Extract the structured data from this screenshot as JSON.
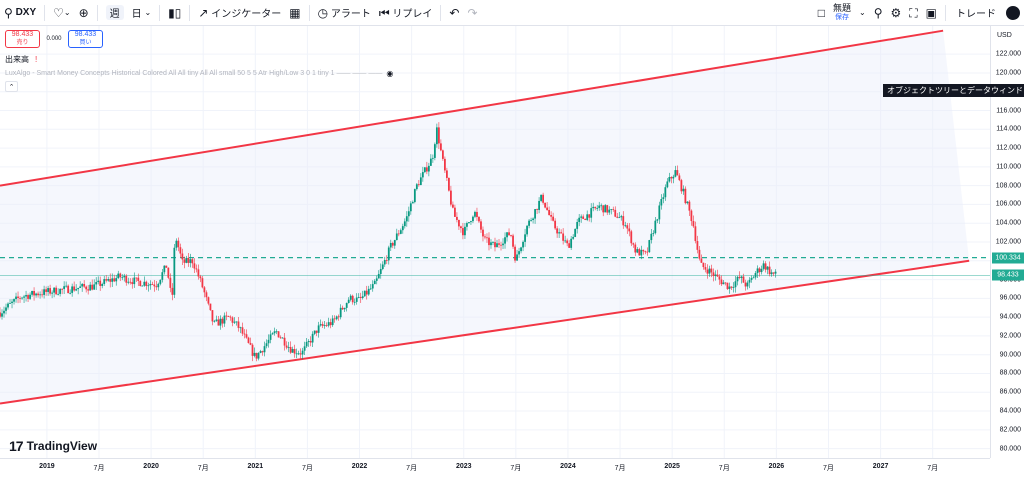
{
  "toolbar": {
    "symbol": "DXY",
    "interval_week": "週",
    "interval_day": "日",
    "indicators_label": "インジケーター",
    "alert_label": "アラート",
    "replay_label": "リプレイ",
    "save_label": "無題",
    "save_sub": "保存",
    "trade_label": "トレード"
  },
  "legend": {
    "sell_price": "98.433",
    "sell_label": "売り",
    "spread": "0.000",
    "buy_price": "98.433",
    "buy_label": "買い",
    "volume_label": "出来高",
    "indicator_text": "LuxAlgo - Smart Money Concepts Historical Colored All All tiny All All small 50 5 5 Atr High/Low 3 0 1 tiny 1 —— —— ——"
  },
  "tooltip": "オブジェクトツリーとデータウィンドウ",
  "logo_text": "TradingView",
  "price_axis": {
    "currency": "USD",
    "ticks": [
      "122.000",
      "120.000",
      "118.000",
      "116.000",
      "114.000",
      "112.000",
      "110.000",
      "108.000",
      "106.000",
      "104.000",
      "102.000",
      "100.000",
      "98.000",
      "96.000",
      "94.000",
      "92.000",
      "90.000",
      "88.000",
      "86.000",
      "84.000",
      "82.000",
      "80.000"
    ],
    "tick_values": [
      122,
      120,
      118,
      116,
      114,
      112,
      110,
      108,
      106,
      104,
      102,
      100,
      98,
      96,
      94,
      92,
      90,
      88,
      86,
      84,
      82,
      80
    ],
    "dashed_level_label": "100.334",
    "dashed_level": 100.334,
    "last_price_label": "98.433",
    "last_price": 98.433
  },
  "time_axis": {
    "labels": [
      {
        "text": "2019",
        "year": true,
        "x": 2019.0
      },
      {
        "text": "7月",
        "year": false,
        "x": 2019.5
      },
      {
        "text": "2020",
        "year": true,
        "x": 2020.0
      },
      {
        "text": "7月",
        "year": false,
        "x": 2020.5
      },
      {
        "text": "2021",
        "year": true,
        "x": 2021.0
      },
      {
        "text": "7月",
        "year": false,
        "x": 2021.5
      },
      {
        "text": "2022",
        "year": true,
        "x": 2022.0
      },
      {
        "text": "7月",
        "year": false,
        "x": 2022.5
      },
      {
        "text": "2023",
        "year": true,
        "x": 2023.0
      },
      {
        "text": "7月",
        "year": false,
        "x": 2023.5
      },
      {
        "text": "2024",
        "year": true,
        "x": 2024.0
      },
      {
        "text": "7月",
        "year": false,
        "x": 2024.5
      },
      {
        "text": "2025",
        "year": true,
        "x": 2025.0
      },
      {
        "text": "7月",
        "year": false,
        "x": 2025.5
      },
      {
        "text": "2026",
        "year": true,
        "x": 2026.0
      },
      {
        "text": "7月",
        "year": false,
        "x": 2026.5
      },
      {
        "text": "2027",
        "year": true,
        "x": 2027.0
      },
      {
        "text": "7月",
        "year": false,
        "x": 2027.5
      }
    ]
  },
  "chart_data": {
    "type": "candlestick",
    "symbol": "DXY",
    "interval": "week",
    "ylim": [
      79,
      125
    ],
    "xlim": [
      2018.55,
      2028.05
    ],
    "channel": {
      "upper": {
        "from": [
          2018.55,
          108.0
        ],
        "to": [
          2027.6,
          124.5
        ]
      },
      "lower": {
        "from": [
          2018.55,
          84.8
        ],
        "to": [
          2027.85,
          100.0
        ]
      },
      "color": "#f23645"
    },
    "key_levels": [
      {
        "value": 100.334,
        "style": "dashed",
        "color": "#22ab94"
      },
      {
        "value": 98.433,
        "style": "solid",
        "color": "#22ab94"
      }
    ],
    "price_path": [
      [
        2018.55,
        94.5
      ],
      [
        2018.75,
        96.2
      ],
      [
        2018.95,
        96.6
      ],
      [
        2019.2,
        97.0
      ],
      [
        2019.45,
        97.3
      ],
      [
        2019.7,
        98.3
      ],
      [
        2019.85,
        97.8
      ],
      [
        2020.05,
        97.5
      ],
      [
        2020.15,
        99.5
      ],
      [
        2020.2,
        95.5
      ],
      [
        2020.23,
        102.8
      ],
      [
        2020.3,
        99.8
      ],
      [
        2020.4,
        100.0
      ],
      [
        2020.5,
        97.0
      ],
      [
        2020.6,
        93.2
      ],
      [
        2020.75,
        94.0
      ],
      [
        2020.85,
        92.8
      ],
      [
        2021.0,
        89.7
      ],
      [
        2021.2,
        92.5
      ],
      [
        2021.35,
        90.5
      ],
      [
        2021.45,
        90.2
      ],
      [
        2021.6,
        92.8
      ],
      [
        2021.75,
        93.5
      ],
      [
        2021.9,
        96.0
      ],
      [
        2022.0,
        95.8
      ],
      [
        2022.15,
        97.5
      ],
      [
        2022.3,
        101.5
      ],
      [
        2022.45,
        104.5
      ],
      [
        2022.55,
        108.0
      ],
      [
        2022.7,
        111.0
      ],
      [
        2022.74,
        114.1
      ],
      [
        2022.8,
        110.5
      ],
      [
        2022.9,
        105.0
      ],
      [
        2023.0,
        103.0
      ],
      [
        2023.1,
        105.3
      ],
      [
        2023.2,
        102.2
      ],
      [
        2023.3,
        101.5
      ],
      [
        2023.45,
        103.0
      ],
      [
        2023.5,
        100.0
      ],
      [
        2023.6,
        103.5
      ],
      [
        2023.75,
        106.8
      ],
      [
        2023.85,
        104.0
      ],
      [
        2024.0,
        101.5
      ],
      [
        2024.1,
        104.2
      ],
      [
        2024.3,
        105.8
      ],
      [
        2024.45,
        105.0
      ],
      [
        2024.55,
        104.0
      ],
      [
        2024.65,
        101.0
      ],
      [
        2024.75,
        100.6
      ],
      [
        2024.85,
        104.5
      ],
      [
        2024.95,
        108.2
      ],
      [
        2025.03,
        109.5
      ],
      [
        2025.1,
        107.5
      ],
      [
        2025.2,
        104.0
      ],
      [
        2025.27,
        99.5
      ],
      [
        2025.35,
        99.0
      ],
      [
        2025.45,
        98.0
      ],
      [
        2025.55,
        97.2
      ],
      [
        2025.65,
        98.2
      ],
      [
        2025.72,
        97.3
      ],
      [
        2025.8,
        98.7
      ],
      [
        2025.88,
        99.6
      ],
      [
        2025.95,
        98.7
      ],
      [
        2026.0,
        98.43
      ]
    ]
  }
}
